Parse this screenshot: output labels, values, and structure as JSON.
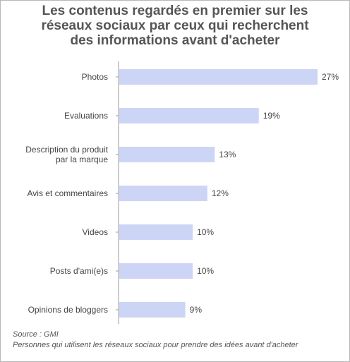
{
  "chart_data": {
    "type": "bar",
    "orientation": "horizontal",
    "title_lines": [
      "Les contenus regardés en premier sur les",
      "réseaux sociaux par ceux qui recherchent",
      "des informations avant d'acheter"
    ],
    "categories": [
      [
        "Photos"
      ],
      [
        "Evaluations"
      ],
      [
        "Description du produit",
        "par la marque"
      ],
      [
        "Avis et commentaires"
      ],
      [
        "Videos"
      ],
      [
        "Posts d'ami(e)s"
      ],
      [
        "Opinions de bloggers"
      ]
    ],
    "values": [
      27,
      19,
      13,
      12,
      10,
      10,
      9
    ],
    "value_labels": [
      "27%",
      "19%",
      "13%",
      "12%",
      "10%",
      "10%",
      "9%"
    ],
    "unit": "%",
    "xlim": [
      0,
      27
    ],
    "grid": false,
    "bar_color": "#cdd5f7",
    "axis_color": "#999999"
  },
  "source": "Source : GMI",
  "note": "Personnes qui utilisent les réseaux sociaux pour prendre des idées avant d'acheter"
}
